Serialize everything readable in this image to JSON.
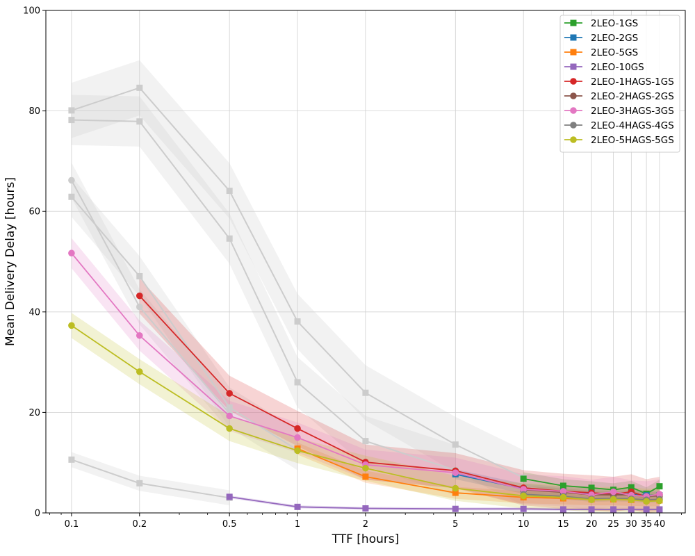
{
  "chart_data": {
    "type": "line",
    "xlabel": "TTF [hours]",
    "ylabel": "Mean Delivery Delay [hours]",
    "xscale": "log",
    "xlim": [
      0.077,
      52
    ],
    "ylim": [
      0,
      100
    ],
    "x_ticks": [
      {
        "value": 0.1,
        "label": "0.1"
      },
      {
        "value": 0.2,
        "label": "0.2"
      },
      {
        "value": 0.5,
        "label": "0.5"
      },
      {
        "value": 1,
        "label": "1"
      },
      {
        "value": 2,
        "label": "2"
      },
      {
        "value": 5,
        "label": "5"
      },
      {
        "value": 10,
        "label": "10"
      },
      {
        "value": 15,
        "label": "15"
      },
      {
        "value": 20,
        "label": "20"
      },
      {
        "value": 25,
        "label": "25"
      },
      {
        "value": 30,
        "label": "30"
      },
      {
        "value": 35,
        "label": "35"
      },
      {
        "value": 40,
        "label": "40"
      }
    ],
    "y_ticks": [
      {
        "value": 0,
        "label": "0"
      },
      {
        "value": 20,
        "label": "20"
      },
      {
        "value": 40,
        "label": "40"
      },
      {
        "value": 60,
        "label": "60"
      },
      {
        "value": 80,
        "label": "80"
      },
      {
        "value": 100,
        "label": "100"
      }
    ],
    "grid": true,
    "legend_position": "top-right",
    "series": [
      {
        "name": "2LEO-1GS",
        "color": "#2ca02c",
        "marker": "square",
        "x": [
          10,
          15,
          20,
          25,
          30,
          35,
          40
        ],
        "y": [
          6.8,
          5.4,
          5.0,
          4.6,
          5.1,
          3.8,
          5.3
        ],
        "band": 1.3
      },
      {
        "name": "2LEO-2GS",
        "color": "#1f77b4",
        "marker": "square",
        "x": [
          5,
          10,
          15,
          20,
          25,
          30,
          35,
          40
        ],
        "y": [
          7.7,
          4.8,
          4.2,
          3.9,
          3.8,
          3.7,
          3.5,
          3.5
        ],
        "band": 1.0
      },
      {
        "name": "2LEO-5GS",
        "color": "#ff7f0e",
        "marker": "square",
        "x": [
          1,
          2,
          5,
          10,
          15,
          20,
          25,
          30,
          35,
          40
        ],
        "y": [
          12.8,
          7.2,
          4.0,
          3.1,
          2.9,
          2.7,
          2.7,
          2.6,
          2.5,
          2.5
        ],
        "band": 1.2
      },
      {
        "name": "2LEO-10GS",
        "color": "#9467bd",
        "marker": "square",
        "x": [
          0.5,
          1,
          2,
          5,
          10,
          15,
          20,
          25,
          30,
          35,
          40
        ],
        "y": [
          3.2,
          1.2,
          0.9,
          0.8,
          0.8,
          0.7,
          0.7,
          0.7,
          0.7,
          0.7,
          0.7
        ],
        "band": 0.3
      },
      {
        "name": "2LEO-1HAGS-1GS",
        "color": "#d62728",
        "marker": "circle",
        "x": [
          0.2,
          0.5,
          1,
          2,
          5,
          10,
          15,
          20,
          25,
          30,
          35,
          40
        ],
        "y": [
          43.2,
          23.8,
          16.8,
          10.1,
          8.4,
          5.0,
          4.3,
          4.0,
          3.7,
          4.2,
          3.2,
          3.7
        ],
        "band": 3.5
      },
      {
        "name": "2LEO-2HAGS-2GS",
        "color": "#8c564b",
        "marker": "circle",
        "x": [
          10,
          15,
          20,
          25,
          30,
          35,
          40
        ],
        "y": [
          4.6,
          4.1,
          3.6,
          3.6,
          3.6,
          3.3,
          3.4
        ],
        "band": 0.8
      },
      {
        "name": "2LEO-3HAGS-3GS",
        "color": "#e377c2",
        "marker": "circle",
        "x": [
          0.1,
          0.2,
          0.5,
          1,
          2,
          5,
          10,
          15,
          20,
          25,
          30,
          35,
          40
        ],
        "y": [
          51.7,
          35.3,
          19.3,
          15.0,
          9.6,
          8.0,
          4.7,
          4.3,
          3.6,
          4.2,
          3.5,
          3.3,
          3.7
        ],
        "band": 3.0
      },
      {
        "name": "2LEO-4HAGS-4GS",
        "color": "#7f7f7f",
        "marker": "circle",
        "x": [
          10,
          15,
          20,
          25,
          30,
          35,
          40
        ],
        "y": [
          3.7,
          3.3,
          2.8,
          2.9,
          2.8,
          2.6,
          2.7
        ],
        "band": 0.6
      },
      {
        "name": "2LEO-5HAGS-5GS",
        "color": "#bcbd22",
        "marker": "circle",
        "x": [
          0.1,
          0.2,
          0.5,
          1,
          2,
          5,
          10,
          15,
          20,
          25,
          30,
          35,
          40
        ],
        "y": [
          37.3,
          28.1,
          16.8,
          12.4,
          8.9,
          4.9,
          3.4,
          3.1,
          2.6,
          2.7,
          2.6,
          2.3,
          2.4
        ],
        "band": 2.5
      }
    ],
    "background_series": [
      {
        "marker": "square",
        "x": [
          0.1,
          0.2,
          0.5,
          1,
          2,
          5,
          10
        ],
        "y": [
          80.1,
          84.6,
          64.1,
          38.1,
          23.9,
          13.6,
          7.0
        ],
        "band": 5.5
      },
      {
        "marker": "square",
        "x": [
          0.1,
          0.2,
          0.5,
          1,
          2,
          5
        ],
        "y": [
          78.2,
          77.9,
          54.6,
          26.0,
          14.3,
          8.5
        ],
        "band": 5.0
      },
      {
        "marker": "square",
        "x": [
          0.1,
          0.2,
          0.5,
          1
        ],
        "y": [
          62.9,
          47.1,
          21.0,
          12.5
        ],
        "band": 4.0
      },
      {
        "marker": "square",
        "x": [
          0.1,
          0.2,
          0.5
        ],
        "y": [
          10.6,
          5.9,
          3.0
        ],
        "band": 1.5
      },
      {
        "marker": "circle",
        "x": [
          0.1,
          0.2,
          0.5
        ],
        "y": [
          66.2,
          41.0,
          19.8
        ],
        "band": 3.5
      }
    ]
  }
}
